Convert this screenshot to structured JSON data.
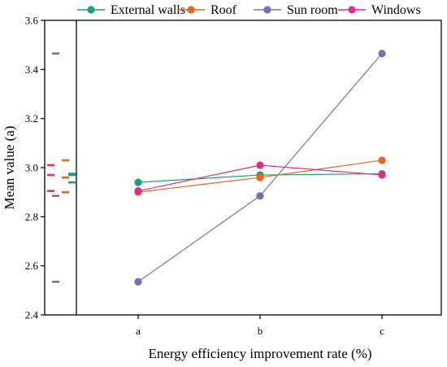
{
  "chart_data": {
    "type": "line",
    "xlabel": "Energy efficiency improvement rate (%)",
    "ylabel": "Mean value (a)",
    "categories": [
      "a",
      "b",
      "c"
    ],
    "ylim": [
      2.4,
      3.6
    ],
    "yticks": [
      "2.4",
      "2.6",
      "2.8",
      "3.0",
      "3.2",
      "3.4",
      "3.6"
    ],
    "grid": false,
    "legend_position": "top",
    "series": [
      {
        "name": "External walls",
        "color": "#1b9e77",
        "values": [
          2.94,
          2.97,
          2.975
        ]
      },
      {
        "name": "Roof",
        "color": "#e8661c",
        "values": [
          2.9,
          2.96,
          3.03
        ]
      },
      {
        "name": "Sun room",
        "color": "#7570b3",
        "values": [
          2.535,
          2.885,
          3.465
        ]
      },
      {
        "name": "Windows",
        "color": "#e7298a",
        "values": [
          2.905,
          3.01,
          2.97
        ]
      }
    ]
  }
}
